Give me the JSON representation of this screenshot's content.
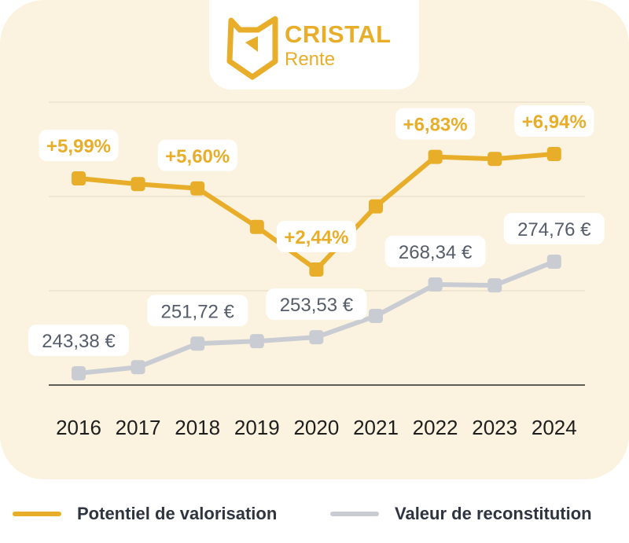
{
  "brand": {
    "name": "CRISTAL",
    "sub": "Rente",
    "color": "#e8ae2a",
    "icon": "cat-shield-logo-icon"
  },
  "colors": {
    "panel": "#fbf3df",
    "series_gold": "#e8ae2a",
    "series_grey": "#c9cdd3",
    "value_text": "#565d6a",
    "axis": "#2a2a2a",
    "grid": "#e9e1cc"
  },
  "chart_data": {
    "type": "line",
    "x": [
      "2016",
      "2017",
      "2018",
      "2019",
      "2020",
      "2021",
      "2022",
      "2023",
      "2024"
    ],
    "ylim": [
      225,
      300
    ],
    "grid": true,
    "legend_position": "bottom",
    "series": [
      {
        "name": "Potentiel de valorisation",
        "color": "#e8ae2a",
        "values": [
          5.99,
          5.77,
          5.6,
          4.1,
          2.44,
          4.9,
          6.83,
          6.75,
          6.94
        ],
        "labels": [
          "+5,99%",
          null,
          "+5,60%",
          null,
          "+2,44%",
          null,
          "+6,83%",
          null,
          "+6,94%"
        ]
      },
      {
        "name": "Valeur de reconstitution",
        "color": "#c9cdd3",
        "values": [
          243.38,
          245.1,
          251.72,
          252.4,
          253.53,
          259.5,
          268.34,
          268.1,
          274.76
        ],
        "labels": [
          "243,38 €",
          null,
          "251,72 €",
          null,
          "253,53 €",
          null,
          "268,34 €",
          null,
          "274,76 €"
        ]
      }
    ]
  }
}
